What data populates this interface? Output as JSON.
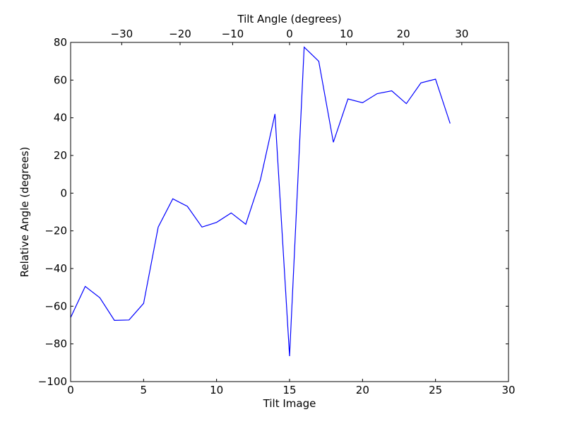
{
  "chart_data": {
    "type": "line",
    "xlabel": "Tilt Image",
    "ylabel": "Relative Angle (degrees)",
    "top_xlabel": "Tilt Angle (degrees)",
    "xlim": [
      0,
      30
    ],
    "ylim": [
      -100,
      80
    ],
    "x_ticks": [
      0,
      5,
      10,
      15,
      20,
      25,
      30
    ],
    "y_ticks": [
      -100,
      -80,
      -60,
      -40,
      -20,
      0,
      20,
      40,
      60,
      80
    ],
    "top_ticks": [
      {
        "label": "−30",
        "x": 3.5
      },
      {
        "label": "−20",
        "x": 7.5
      },
      {
        "label": "−10",
        "x": 11.1
      },
      {
        "label": "0",
        "x": 15
      },
      {
        "label": "10",
        "x": 18.9
      },
      {
        "label": "20",
        "x": 22.8
      },
      {
        "label": "30",
        "x": 26.8
      }
    ],
    "series": [
      {
        "color": "#0000ff",
        "x": [
          0,
          1,
          2,
          3,
          4,
          5,
          6,
          7,
          8,
          9,
          10,
          11,
          12,
          13,
          14,
          15,
          16,
          17,
          18,
          19,
          20,
          21,
          22,
          23,
          24,
          25,
          26
        ],
        "y": [
          -66,
          -49.5,
          -55.5,
          -67.5,
          -67.3,
          -58.5,
          -18,
          -3,
          -7,
          -18,
          -15.5,
          -10.5,
          -16.5,
          7,
          42,
          -86.5,
          77.5,
          70,
          27,
          50,
          48,
          52.8,
          54.3,
          47.5,
          58.5,
          60.5,
          37
        ]
      }
    ],
    "grid": false
  }
}
